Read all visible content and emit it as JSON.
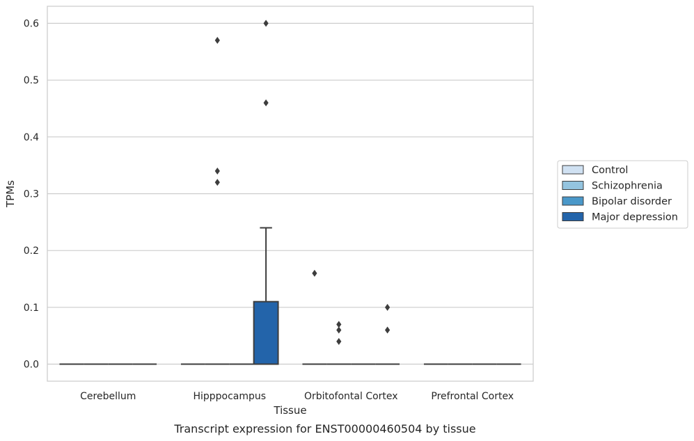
{
  "chart_data": {
    "type": "box",
    "caption": "Transcript expression for ENST00000460504 by tissue",
    "xlabel": "Tissue",
    "ylabel": "TPMs",
    "ylim": [
      -0.03,
      0.63
    ],
    "yticks": [
      0.0,
      0.1,
      0.2,
      0.3,
      0.4,
      0.5,
      0.6
    ],
    "ytick_labels": [
      "0.0",
      "0.1",
      "0.2",
      "0.3",
      "0.4",
      "0.5",
      "0.6"
    ],
    "grid": true,
    "legend_position": "right",
    "categories": [
      "Cerebellum",
      "Hipppocampus",
      "Orbitofontal Cortex",
      "Prefrontal Cortex"
    ],
    "series": [
      {
        "name": "Control",
        "color": "#d0e1f2",
        "boxes": [
          {
            "q1": 0,
            "median": 0,
            "q3": 0,
            "whisker_low": 0,
            "whisker_high": 0,
            "outliers": []
          },
          {
            "q1": 0,
            "median": 0,
            "q3": 0,
            "whisker_low": 0,
            "whisker_high": 0,
            "outliers": []
          },
          {
            "q1": 0,
            "median": 0,
            "q3": 0,
            "whisker_low": 0,
            "whisker_high": 0,
            "outliers": [
              0.16
            ]
          },
          {
            "q1": 0,
            "median": 0,
            "q3": 0,
            "whisker_low": 0,
            "whisker_high": 0,
            "outliers": []
          }
        ]
      },
      {
        "name": "Schizophrenia",
        "color": "#94c4df",
        "boxes": [
          {
            "q1": 0,
            "median": 0,
            "q3": 0,
            "whisker_low": 0,
            "whisker_high": 0,
            "outliers": []
          },
          {
            "q1": 0,
            "median": 0,
            "q3": 0,
            "whisker_low": 0,
            "whisker_high": 0,
            "outliers": [
              0.32,
              0.34,
              0.57
            ]
          },
          {
            "q1": 0,
            "median": 0,
            "q3": 0,
            "whisker_low": 0,
            "whisker_high": 0,
            "outliers": [
              0.04,
              0.06,
              0.07
            ]
          },
          {
            "q1": 0,
            "median": 0,
            "q3": 0,
            "whisker_low": 0,
            "whisker_high": 0,
            "outliers": []
          }
        ]
      },
      {
        "name": "Bipolar disorder",
        "color": "#4a98c9",
        "boxes": [
          {
            "q1": 0,
            "median": 0,
            "q3": 0,
            "whisker_low": 0,
            "whisker_high": 0,
            "outliers": []
          },
          {
            "q1": 0,
            "median": 0,
            "q3": 0,
            "whisker_low": 0,
            "whisker_high": 0,
            "outliers": []
          },
          {
            "q1": 0,
            "median": 0,
            "q3": 0,
            "whisker_low": 0,
            "whisker_high": 0,
            "outliers": []
          },
          {
            "q1": 0,
            "median": 0,
            "q3": 0,
            "whisker_low": 0,
            "whisker_high": 0,
            "outliers": []
          }
        ]
      },
      {
        "name": "Major depression",
        "color": "#2364aa",
        "boxes": [
          {
            "q1": 0,
            "median": 0,
            "q3": 0,
            "whisker_low": 0,
            "whisker_high": 0,
            "outliers": []
          },
          {
            "q1": 0,
            "median": 0,
            "q3": 0.11,
            "whisker_low": 0,
            "whisker_high": 0.24,
            "outliers": [
              0.46,
              0.6
            ]
          },
          {
            "q1": 0,
            "median": 0,
            "q3": 0,
            "whisker_low": 0,
            "whisker_high": 0,
            "outliers": [
              0.06,
              0.1
            ]
          },
          {
            "q1": 0,
            "median": 0,
            "q3": 0,
            "whisker_low": 0,
            "whisker_high": 0,
            "outliers": []
          }
        ]
      }
    ]
  }
}
